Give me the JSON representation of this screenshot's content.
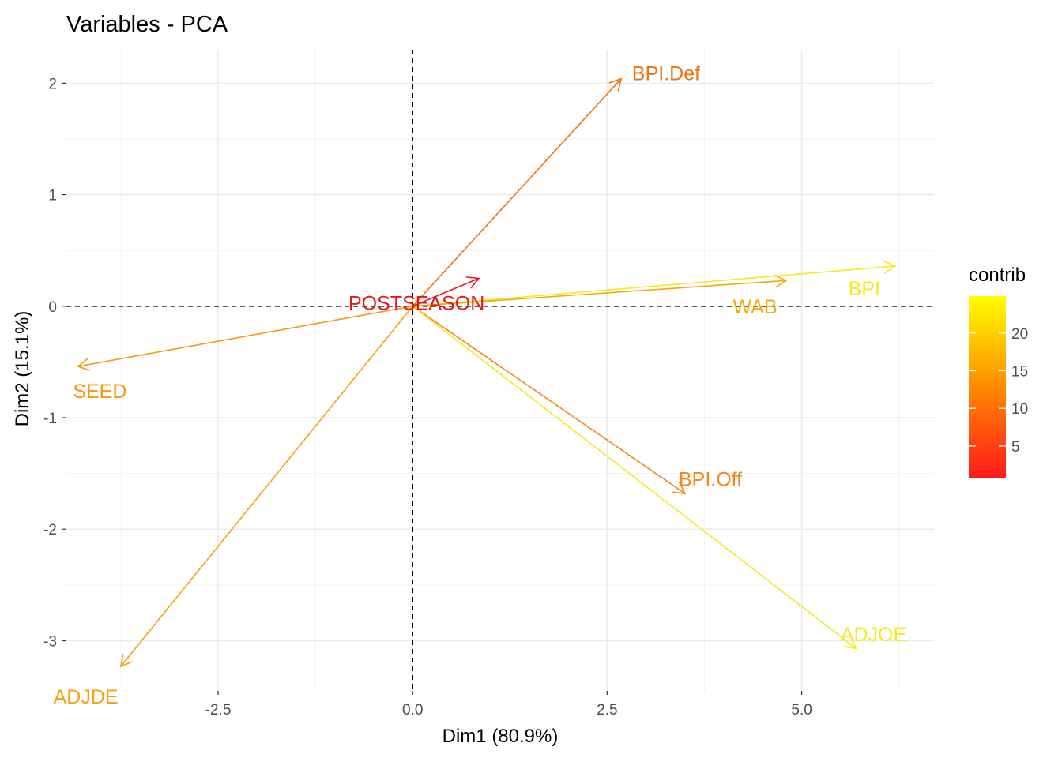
{
  "chart_data": {
    "type": "biplot-variables",
    "title": "Variables - PCA",
    "xlabel": "Dim1 (80.9%)",
    "ylabel": "Dim2 (15.1%)",
    "xlim": [
      -4.45,
      6.7
    ],
    "ylim": [
      -3.45,
      2.3
    ],
    "x_major_ticks": [
      -2.5,
      0.0,
      2.5,
      5.0
    ],
    "x_tick_labels": [
      "-2.5",
      "0.0",
      "2.5",
      "5.0"
    ],
    "y_major_ticks": [
      -3,
      -2,
      -1,
      0,
      1,
      2
    ],
    "y_tick_labels": [
      "-3",
      "-2",
      "-1",
      "0",
      "1",
      "2"
    ],
    "x_minor_ticks": [
      -3.75,
      -1.25,
      1.25,
      3.75,
      6.25
    ],
    "y_minor_ticks": [
      -2.5,
      -1.5,
      -0.5,
      0.5,
      1.5
    ],
    "grid": true,
    "reference_lines": {
      "x": 0,
      "y": 0,
      "style": "dashed"
    },
    "variables": [
      {
        "name": "BPI.Def",
        "x": 2.68,
        "y": 2.04,
        "contrib": 8,
        "color": "#f2720e",
        "label_x": 2.82,
        "label_y": 2.09,
        "anchor": "start"
      },
      {
        "name": "BPI",
        "x": 6.2,
        "y": 0.36,
        "contrib": 24,
        "color": "#f8e81f",
        "label_x": 5.6,
        "label_y": 0.16,
        "anchor": "start"
      },
      {
        "name": "WAB",
        "x": 4.8,
        "y": 0.23,
        "contrib": 15,
        "color": "#f7a70c",
        "label_x": 4.4,
        "label_y": 0.0,
        "anchor": "middle"
      },
      {
        "name": "POSTSEASON",
        "x": 0.85,
        "y": 0.25,
        "contrib": 1,
        "color": "#e8141c",
        "label_x": 0.05,
        "label_y": 0.03,
        "anchor": "middle"
      },
      {
        "name": "SEED",
        "x": -4.3,
        "y": -0.54,
        "contrib": 13,
        "color": "#f7980e",
        "label_x": -4.02,
        "label_y": -0.76,
        "anchor": "middle"
      },
      {
        "name": "BPI.Off",
        "x": 3.5,
        "y": -1.68,
        "contrib": 9,
        "color": "#f4861c",
        "label_x": 3.42,
        "label_y": -1.55,
        "anchor": "start"
      },
      {
        "name": "ADJOE",
        "x": 5.7,
        "y": -3.07,
        "contrib": 24,
        "color": "#f8e81f",
        "label_x": 5.5,
        "label_y": -2.94,
        "anchor": "start"
      },
      {
        "name": "ADJDE",
        "x": -3.75,
        "y": -3.23,
        "contrib": 14,
        "color": "#f5a20c",
        "label_x": -4.2,
        "label_y": -3.5,
        "anchor": "middle"
      }
    ],
    "legend": {
      "title": "contrib",
      "position": "right",
      "range": [
        0.8,
        24.9
      ],
      "ticks": [
        5,
        10,
        15,
        20
      ],
      "tick_labels": [
        "5",
        "10",
        "15",
        "20"
      ],
      "gradient": [
        "#ff1a1a",
        "#ff8a00",
        "#ffff00"
      ]
    }
  }
}
